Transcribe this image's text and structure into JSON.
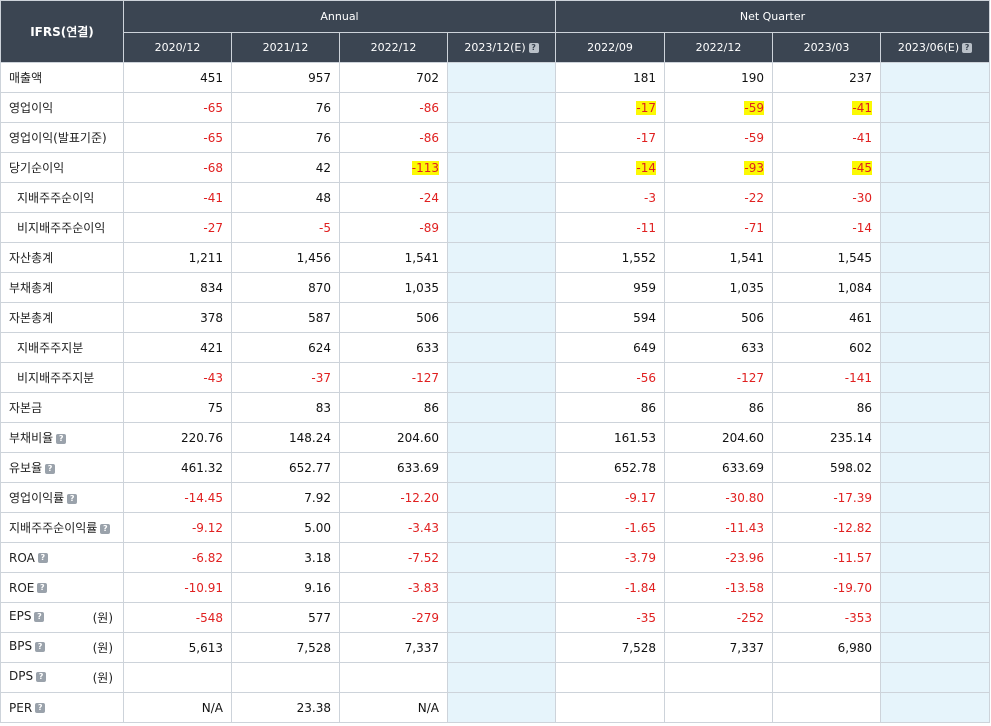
{
  "header": {
    "corner": "IFRS(연결)",
    "annual_label": "Annual",
    "quarter_label": "Net Quarter",
    "columns": [
      {
        "label": "2020/12",
        "help": false
      },
      {
        "label": "2021/12",
        "help": false
      },
      {
        "label": "2022/12",
        "help": false
      },
      {
        "label": "2023/12(E)",
        "help": true
      },
      {
        "label": "2022/09",
        "help": false
      },
      {
        "label": "2022/12",
        "help": false
      },
      {
        "label": "2023/03",
        "help": false
      },
      {
        "label": "2023/06(E)",
        "help": true
      }
    ],
    "help_glyph": "?"
  },
  "rows": [
    {
      "label": "매출액",
      "values": [
        "451",
        "957",
        "702",
        "",
        "181",
        "190",
        "237",
        ""
      ]
    },
    {
      "label": "영업이익",
      "values": [
        "-65",
        "76",
        "-86",
        "",
        "-17",
        "-59",
        "-41",
        ""
      ]
    },
    {
      "label": "영업이익(발표기준)",
      "values": [
        "-65",
        "76",
        "-86",
        "",
        "-17",
        "-59",
        "-41",
        ""
      ]
    },
    {
      "label": "당기순이익",
      "values": [
        "-68",
        "42",
        "-113",
        "",
        "-14",
        "-93",
        "-45",
        ""
      ]
    },
    {
      "label": "지배주주순이익",
      "sub": true,
      "values": [
        "-41",
        "48",
        "-24",
        "",
        "-3",
        "-22",
        "-30",
        ""
      ]
    },
    {
      "label": "비지배주주순이익",
      "sub": true,
      "values": [
        "-27",
        "-5",
        "-89",
        "",
        "-11",
        "-71",
        "-14",
        ""
      ]
    },
    {
      "label": "자산총계",
      "values": [
        "1,211",
        "1,456",
        "1,541",
        "",
        "1,552",
        "1,541",
        "1,545",
        ""
      ]
    },
    {
      "label": "부채총계",
      "values": [
        "834",
        "870",
        "1,035",
        "",
        "959",
        "1,035",
        "1,084",
        ""
      ]
    },
    {
      "label": "자본총계",
      "values": [
        "378",
        "587",
        "506",
        "",
        "594",
        "506",
        "461",
        ""
      ]
    },
    {
      "label": "지배주주지분",
      "sub": true,
      "values": [
        "421",
        "624",
        "633",
        "",
        "649",
        "633",
        "602",
        ""
      ]
    },
    {
      "label": "비지배주주지분",
      "sub": true,
      "values": [
        "-43",
        "-37",
        "-127",
        "",
        "-56",
        "-127",
        "-141",
        ""
      ]
    },
    {
      "label": "자본금",
      "values": [
        "75",
        "83",
        "86",
        "",
        "86",
        "86",
        "86",
        ""
      ]
    },
    {
      "label": "부채비율",
      "help": true,
      "values": [
        "220.76",
        "148.24",
        "204.60",
        "",
        "161.53",
        "204.60",
        "235.14",
        ""
      ]
    },
    {
      "label": "유보율",
      "help": true,
      "values": [
        "461.32",
        "652.77",
        "633.69",
        "",
        "652.78",
        "633.69",
        "598.02",
        ""
      ]
    },
    {
      "label": "영업이익률",
      "help": true,
      "values": [
        "-14.45",
        "7.92",
        "-12.20",
        "",
        "-9.17",
        "-30.80",
        "-17.39",
        ""
      ]
    },
    {
      "label": "지배주주순이익률",
      "help": true,
      "values": [
        "-9.12",
        "5.00",
        "-3.43",
        "",
        "-1.65",
        "-11.43",
        "-12.82",
        ""
      ]
    },
    {
      "label": "ROA",
      "help": true,
      "values": [
        "-6.82",
        "3.18",
        "-7.52",
        "",
        "-3.79",
        "-23.96",
        "-11.57",
        ""
      ]
    },
    {
      "label": "ROE",
      "help": true,
      "values": [
        "-10.91",
        "9.16",
        "-3.83",
        "",
        "-1.84",
        "-13.58",
        "-19.70",
        ""
      ]
    },
    {
      "label": "EPS",
      "help": true,
      "unit": "(원)",
      "values": [
        "-548",
        "577",
        "-279",
        "",
        "-35",
        "-252",
        "-353",
        ""
      ]
    },
    {
      "label": "BPS",
      "help": true,
      "unit": "(원)",
      "values": [
        "5,613",
        "7,528",
        "7,337",
        "",
        "7,528",
        "7,337",
        "6,980",
        ""
      ]
    },
    {
      "label": "DPS",
      "help": true,
      "unit": "(원)",
      "values": [
        "",
        "",
        "",
        "",
        "",
        "",
        "",
        ""
      ]
    },
    {
      "label": "PER",
      "help": true,
      "values": [
        "N/A",
        "23.38",
        "N/A",
        "",
        "",
        "",
        "",
        ""
      ]
    }
  ],
  "highlights": [
    {
      "row": 1,
      "cols": [
        4,
        5,
        6
      ]
    },
    {
      "row": 3,
      "cols": [
        2,
        4,
        5,
        6
      ]
    }
  ],
  "colors": {
    "header_bg": "#3b4552",
    "estimate_bg": "#e6f4fb",
    "negative": "#e02020",
    "highlight": "#fbf904",
    "border": "#cdd3da"
  }
}
